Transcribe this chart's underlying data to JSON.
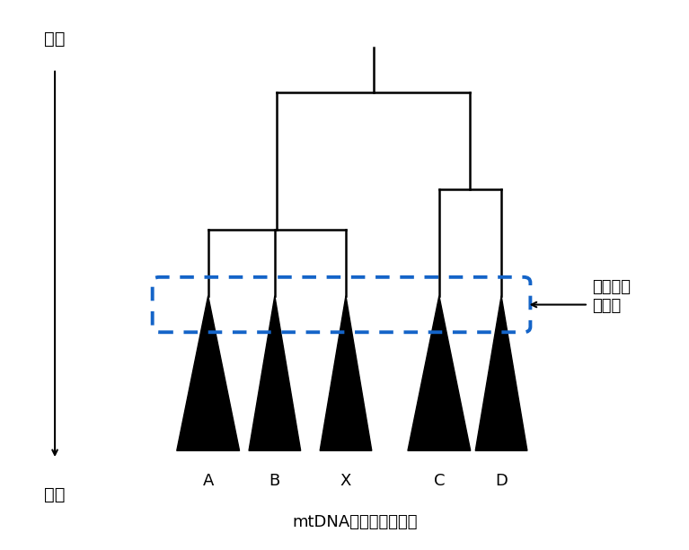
{
  "title": "mtDNAハプログループ",
  "labels": [
    "A",
    "B",
    "X",
    "C",
    "D"
  ],
  "tree_color": "#000000",
  "triangle_color": "#000000",
  "dashed_rect_color": "#1464c8",
  "annotation_text": "最終氷期\n極大期",
  "y_axis_label_top": "過去",
  "y_axis_label_bottom": "現在",
  "background_color": "#ffffff"
}
